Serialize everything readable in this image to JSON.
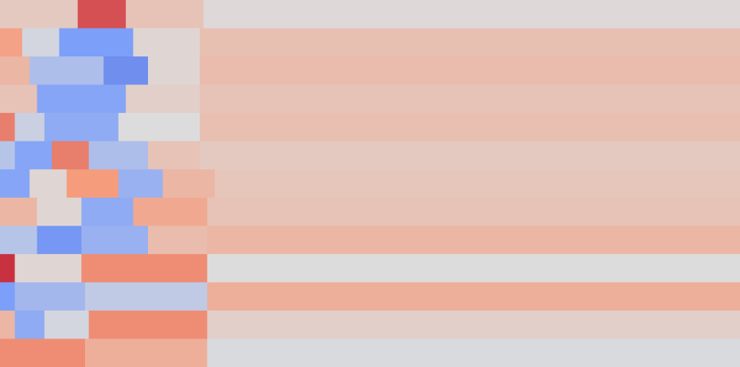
{
  "chart_data": {
    "type": "heatmap",
    "colormap": "coolwarm",
    "value_range": [
      -1,
      1
    ],
    "rows": 13,
    "row_segments": [
      [
        {
          "fraction": 0.105,
          "value": 0.15
        },
        {
          "fraction": 0.065,
          "value": 0.75
        },
        {
          "fraction": 0.105,
          "value": 0.2
        },
        {
          "fraction": 0.725,
          "value": 0.02
        }
      ],
      [
        {
          "fraction": 0.03,
          "value": 0.45
        },
        {
          "fraction": 0.05,
          "value": -0.05
        },
        {
          "fraction": 0.1,
          "value": -0.5
        },
        {
          "fraction": 0.09,
          "value": 0.05
        },
        {
          "fraction": 0.73,
          "value": 0.22
        }
      ],
      [
        {
          "fraction": 0.04,
          "value": 0.3
        },
        {
          "fraction": 0.1,
          "value": -0.25
        },
        {
          "fraction": 0.06,
          "value": -0.6
        },
        {
          "fraction": 0.07,
          "value": 0.05
        },
        {
          "fraction": 0.73,
          "value": 0.25
        }
      ],
      [
        {
          "fraction": 0.05,
          "value": 0.2
        },
        {
          "fraction": 0.12,
          "value": -0.45
        },
        {
          "fraction": 0.1,
          "value": 0.1
        },
        {
          "fraction": 0.73,
          "value": 0.2
        }
      ],
      [
        {
          "fraction": 0.02,
          "value": 0.6
        },
        {
          "fraction": 0.04,
          "value": -0.1
        },
        {
          "fraction": 0.1,
          "value": -0.4
        },
        {
          "fraction": 0.11,
          "value": 0.0
        },
        {
          "fraction": 0.73,
          "value": 0.23
        }
      ],
      [
        {
          "fraction": 0.02,
          "value": -0.2
        },
        {
          "fraction": 0.05,
          "value": -0.45
        },
        {
          "fraction": 0.05,
          "value": 0.6
        },
        {
          "fraction": 0.08,
          "value": -0.25
        },
        {
          "fraction": 0.07,
          "value": 0.2
        },
        {
          "fraction": 0.73,
          "value": 0.15
        }
      ],
      [
        {
          "fraction": 0.04,
          "value": -0.45
        },
        {
          "fraction": 0.05,
          "value": 0.05
        },
        {
          "fraction": 0.07,
          "value": 0.5
        },
        {
          "fraction": 0.06,
          "value": -0.35
        },
        {
          "fraction": 0.07,
          "value": 0.3
        },
        {
          "fraction": 0.71,
          "value": 0.18
        }
      ],
      [
        {
          "fraction": 0.05,
          "value": 0.3
        },
        {
          "fraction": 0.06,
          "value": 0.05
        },
        {
          "fraction": 0.07,
          "value": -0.4
        },
        {
          "fraction": 0.1,
          "value": 0.4
        },
        {
          "fraction": 0.72,
          "value": 0.2
        }
      ],
      [
        {
          "fraction": 0.05,
          "value": -0.2
        },
        {
          "fraction": 0.06,
          "value": -0.55
        },
        {
          "fraction": 0.09,
          "value": -0.35
        },
        {
          "fraction": 0.08,
          "value": 0.25
        },
        {
          "fraction": 0.72,
          "value": 0.3
        }
      ],
      [
        {
          "fraction": 0.02,
          "value": 0.85
        },
        {
          "fraction": 0.09,
          "value": 0.05
        },
        {
          "fraction": 0.17,
          "value": 0.55
        },
        {
          "fraction": 0.72,
          "value": 0.0
        }
      ],
      [
        {
          "fraction": 0.02,
          "value": -0.5
        },
        {
          "fraction": 0.095,
          "value": -0.3
        },
        {
          "fraction": 0.165,
          "value": -0.15
        },
        {
          "fraction": 0.72,
          "value": 0.35
        }
      ],
      [
        {
          "fraction": 0.02,
          "value": 0.3
        },
        {
          "fraction": 0.04,
          "value": -0.4
        },
        {
          "fraction": 0.06,
          "value": -0.05
        },
        {
          "fraction": 0.16,
          "value": 0.55
        },
        {
          "fraction": 0.72,
          "value": 0.1
        }
      ],
      [
        {
          "fraction": 0.115,
          "value": 0.55
        },
        {
          "fraction": 0.165,
          "value": 0.35
        },
        {
          "fraction": 0.72,
          "value": -0.02
        }
      ]
    ]
  }
}
